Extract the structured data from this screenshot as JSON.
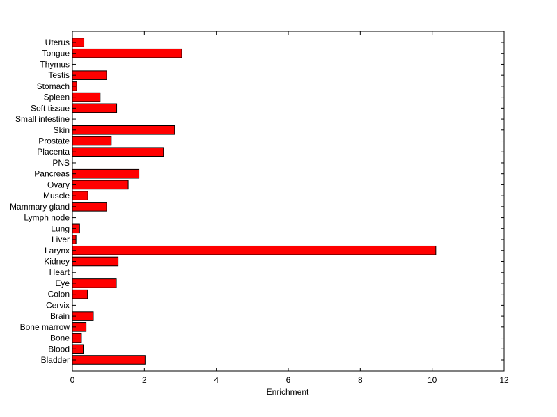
{
  "chart_data": {
    "type": "bar",
    "orientation": "horizontal",
    "title": "",
    "xlabel": "Enrichment",
    "ylabel": "",
    "xlim": [
      0,
      12
    ],
    "xticks": [
      0,
      2,
      4,
      6,
      8,
      10,
      12
    ],
    "grid": false,
    "legend": "none",
    "bar_color": "#ff0000",
    "edge_color": "#000000",
    "categories": [
      "Bladder",
      "Blood",
      "Bone",
      "Bone marrow",
      "Brain",
      "Cervix",
      "Colon",
      "Eye",
      "Heart",
      "Kidney",
      "Larynx",
      "Liver",
      "Lung",
      "Lymph node",
      "Mammary gland",
      "Muscle",
      "Ovary",
      "Pancreas",
      "PNS",
      "Placenta",
      "Prostate",
      "Skin",
      "Small intestine",
      "Soft tissue",
      "Spleen",
      "Stomach",
      "Testis",
      "Thymus",
      "Tongue",
      "Uterus"
    ],
    "values": [
      2.02,
      0.3,
      0.25,
      0.38,
      0.58,
      0,
      0.42,
      1.22,
      0,
      1.27,
      10.1,
      0.1,
      0.2,
      0,
      0.95,
      0.43,
      1.55,
      1.85,
      0,
      2.53,
      1.08,
      2.84,
      0,
      1.23,
      0.77,
      0.12,
      0.95,
      0,
      3.04,
      0.32
    ]
  }
}
